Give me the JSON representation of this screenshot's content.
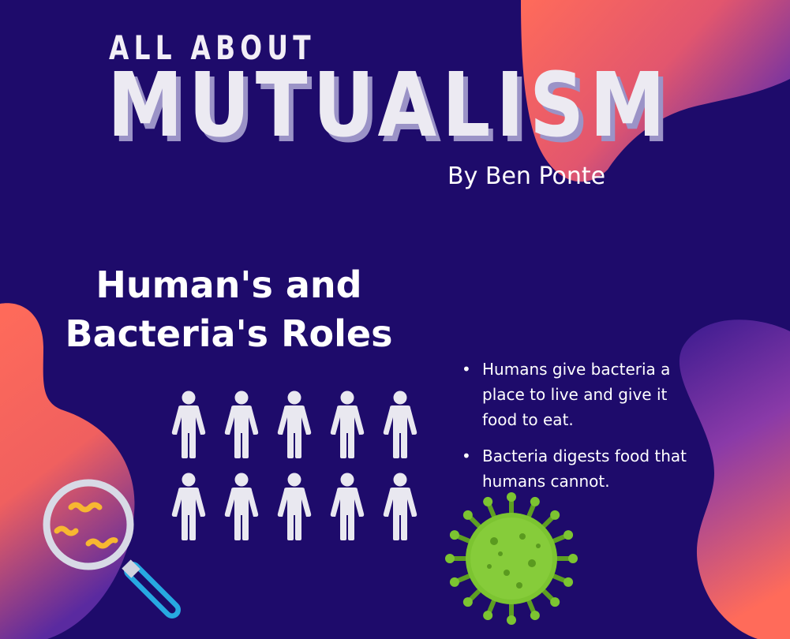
{
  "header": {
    "kicker": "ALL ABOUT",
    "title": "MUTUALISM",
    "byline": "By Ben Ponte"
  },
  "section": {
    "heading_line1": "Human's and",
    "heading_line2": "Bacteria's Roles"
  },
  "facts": [
    "Humans give bacteria a place to live and give it food to eat.",
    "Bacteria digests food that humans cannot."
  ],
  "graphics": {
    "people_count": 10,
    "icons": [
      "person-icon",
      "magnifier-bacteria-icon",
      "virus-icon"
    ]
  },
  "colors": {
    "background": "#1e0b6b",
    "blob_coral": "#ff6b5a",
    "blob_purple": "#7a35b0",
    "text": "#ffffff",
    "virus_green": "#7cc431",
    "bacteria_yellow": "#f7b731",
    "magnifier_handle": "#27a9e1"
  }
}
